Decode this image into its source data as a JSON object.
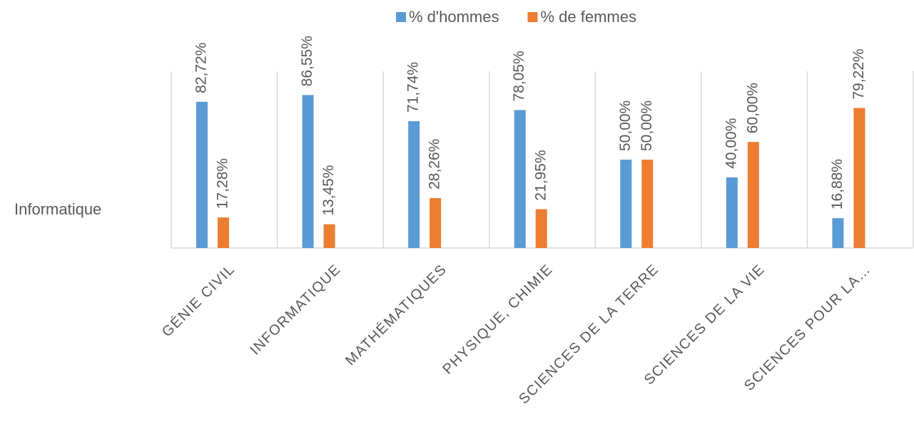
{
  "chart_data": {
    "type": "bar",
    "annotations": [
      "Informatique"
    ],
    "categories": [
      "GÉNIE CIVIL",
      "INFORMATIQUE",
      "MATHÉMATIQUES",
      "PHYSIQUE, CHIMIE",
      "SCIENCES DE LA TERRE",
      "SCIENCES DE LA VIE",
      "SCIENCES POUR LA…"
    ],
    "series": [
      {
        "name": "% d'hommes",
        "color": "#5b9bd5",
        "values": [
          82.72,
          86.55,
          71.74,
          78.05,
          50,
          40,
          16.88
        ],
        "value_labels": [
          "82,72%",
          "86,55%",
          "71,74%",
          "78,05%",
          "50,00%",
          "40,00%",
          "16,88%"
        ]
      },
      {
        "name": "% de femmes",
        "color": "#ed7d31",
        "values": [
          17.28,
          13.45,
          28.26,
          21.95,
          50,
          60,
          79.22
        ],
        "value_labels": [
          "17,28%",
          "13,45%",
          "28,26%",
          "21,95%",
          "50,00%",
          "60,00%",
          "79,22%"
        ]
      }
    ],
    "ylim": [
      0,
      100
    ],
    "legend": "top",
    "grid": false
  }
}
